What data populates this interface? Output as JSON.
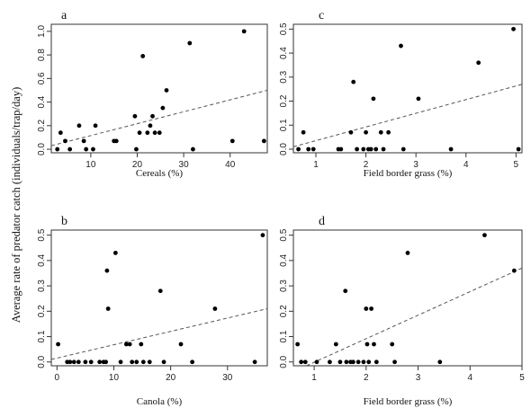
{
  "y_axis_title": "Average rate of predator catch (individuals/trap/day)",
  "chart_data": [
    {
      "id": "a",
      "type": "scatter",
      "panel_label": "a",
      "xlabel": "Cereals (%)",
      "xlim": [
        1.5,
        48
      ],
      "ylim": [
        -0.03,
        1.06
      ],
      "xticks": [
        10,
        20,
        30,
        40
      ],
      "yticks": [
        0.0,
        0.2,
        0.4,
        0.6,
        0.8,
        1.0
      ],
      "ytick_labels": [
        "0.0",
        "0.2",
        "0.4",
        "0.6",
        "0.8",
        "1.0"
      ],
      "points": [
        [
          2.8,
          0.0
        ],
        [
          3.5,
          0.14
        ],
        [
          4.5,
          0.07
        ],
        [
          5.5,
          0.0
        ],
        [
          7.5,
          0.2
        ],
        [
          8.5,
          0.07
        ],
        [
          9.0,
          0.0
        ],
        [
          10.5,
          0.0
        ],
        [
          11.0,
          0.2
        ],
        [
          15.0,
          0.07
        ],
        [
          15.5,
          0.07
        ],
        [
          19.5,
          0.28
        ],
        [
          19.8,
          0.0
        ],
        [
          20.5,
          0.14
        ],
        [
          21.2,
          0.79
        ],
        [
          22.2,
          0.14
        ],
        [
          22.8,
          0.2
        ],
        [
          23.3,
          0.28
        ],
        [
          23.8,
          0.14
        ],
        [
          24.8,
          0.14
        ],
        [
          25.5,
          0.35
        ],
        [
          26.3,
          0.5
        ],
        [
          31.3,
          0.9
        ],
        [
          32.0,
          0.0
        ],
        [
          40.5,
          0.07
        ],
        [
          43.0,
          1.0
        ],
        [
          47.3,
          0.07
        ]
      ],
      "trend": [
        [
          1.5,
          0.03
        ],
        [
          48,
          0.5
        ]
      ]
    },
    {
      "id": "b",
      "type": "scatter",
      "panel_label": "b",
      "xlabel": "Canola (%)",
      "xlim": [
        -1,
        37
      ],
      "ylim": [
        -0.015,
        0.52
      ],
      "xticks": [
        0,
        10,
        20,
        30
      ],
      "yticks": [
        0.0,
        0.1,
        0.2,
        0.3,
        0.4,
        0.5
      ],
      "ytick_labels": [
        "0.0",
        "0.1",
        "0.2",
        "0.3",
        "0.4",
        "0.5"
      ],
      "points": [
        [
          0.2,
          0.07
        ],
        [
          1.8,
          0.0
        ],
        [
          2.3,
          0.0
        ],
        [
          3.0,
          0.0
        ],
        [
          3.8,
          0.0
        ],
        [
          5.0,
          0.0
        ],
        [
          6.0,
          0.0
        ],
        [
          7.5,
          0.0
        ],
        [
          8.2,
          0.0
        ],
        [
          8.6,
          0.0
        ],
        [
          8.8,
          0.36
        ],
        [
          9.0,
          0.21
        ],
        [
          10.3,
          0.43
        ],
        [
          11.2,
          0.0
        ],
        [
          12.2,
          0.07
        ],
        [
          12.8,
          0.07
        ],
        [
          13.2,
          0.0
        ],
        [
          14.0,
          0.0
        ],
        [
          14.8,
          0.07
        ],
        [
          15.2,
          0.0
        ],
        [
          16.3,
          0.0
        ],
        [
          18.2,
          0.28
        ],
        [
          18.8,
          0.0
        ],
        [
          21.8,
          0.07
        ],
        [
          23.8,
          0.0
        ],
        [
          27.8,
          0.21
        ],
        [
          34.8,
          0.0
        ],
        [
          36.2,
          0.5
        ]
      ],
      "trend": [
        [
          -1,
          0.01
        ],
        [
          37,
          0.21
        ]
      ]
    },
    {
      "id": "c",
      "type": "scatter",
      "panel_label": "c",
      "xlabel": "Field border grass (%)",
      "xlim": [
        0.55,
        5.12
      ],
      "ylim": [
        -0.015,
        0.52
      ],
      "xticks": [
        1,
        2,
        3,
        4,
        5
      ],
      "yticks": [
        0.0,
        0.1,
        0.2,
        0.3,
        0.4,
        0.5
      ],
      "ytick_labels": [
        "0.0",
        "0.1",
        "0.2",
        "0.3",
        "0.4",
        "0.5"
      ],
      "points": [
        [
          0.65,
          0.0
        ],
        [
          0.75,
          0.07
        ],
        [
          0.85,
          0.0
        ],
        [
          0.95,
          0.0
        ],
        [
          1.45,
          0.0
        ],
        [
          1.5,
          0.0
        ],
        [
          1.7,
          0.07
        ],
        [
          1.75,
          0.28
        ],
        [
          1.82,
          0.0
        ],
        [
          1.95,
          0.0
        ],
        [
          2.0,
          0.07
        ],
        [
          2.05,
          0.0
        ],
        [
          2.1,
          0.0
        ],
        [
          2.15,
          0.21
        ],
        [
          2.2,
          0.0
        ],
        [
          2.3,
          0.07
        ],
        [
          2.35,
          0.0
        ],
        [
          2.45,
          0.07
        ],
        [
          2.7,
          0.43
        ],
        [
          2.75,
          0.0
        ],
        [
          3.05,
          0.21
        ],
        [
          3.7,
          0.0
        ],
        [
          4.25,
          0.36
        ],
        [
          4.95,
          0.5
        ],
        [
          5.05,
          0.0
        ]
      ],
      "trend": [
        [
          0.55,
          0.01
        ],
        [
          5.12,
          0.27
        ]
      ]
    },
    {
      "id": "d",
      "type": "scatter",
      "panel_label": "d",
      "xlabel": "Field border grass (%)",
      "xlim": [
        0.6,
        5.0
      ],
      "ylim": [
        -0.015,
        0.52
      ],
      "xticks": [
        1,
        2,
        3,
        4,
        5
      ],
      "yticks": [
        0.0,
        0.1,
        0.2,
        0.3,
        0.4,
        0.5
      ],
      "ytick_labels": [
        "0.0",
        "0.1",
        "0.2",
        "0.3",
        "0.4",
        "0.5"
      ],
      "points": [
        [
          0.68,
          0.07
        ],
        [
          0.75,
          0.0
        ],
        [
          0.83,
          0.0
        ],
        [
          1.05,
          0.0
        ],
        [
          1.3,
          0.0
        ],
        [
          1.42,
          0.07
        ],
        [
          1.5,
          0.0
        ],
        [
          1.6,
          0.28
        ],
        [
          1.62,
          0.0
        ],
        [
          1.7,
          0.0
        ],
        [
          1.75,
          0.0
        ],
        [
          1.85,
          0.0
        ],
        [
          1.95,
          0.0
        ],
        [
          2.0,
          0.21
        ],
        [
          2.02,
          0.07
        ],
        [
          2.05,
          0.0
        ],
        [
          2.1,
          0.21
        ],
        [
          2.15,
          0.07
        ],
        [
          2.2,
          0.0
        ],
        [
          2.5,
          0.07
        ],
        [
          2.55,
          0.0
        ],
        [
          2.8,
          0.43
        ],
        [
          3.42,
          0.0
        ],
        [
          4.28,
          0.5
        ],
        [
          4.85,
          0.36
        ]
      ],
      "trend": [
        [
          0.85,
          -0.015
        ],
        [
          5.0,
          0.37
        ]
      ]
    }
  ]
}
